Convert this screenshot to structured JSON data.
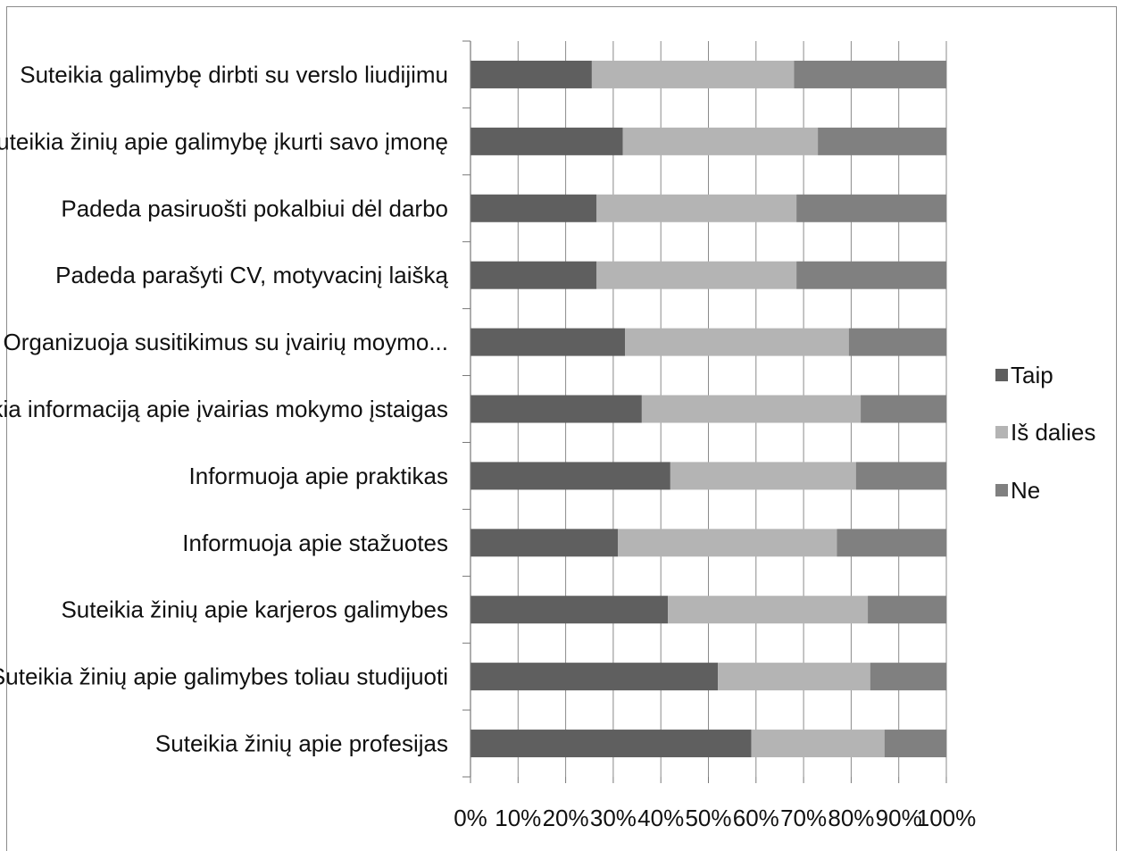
{
  "chart_data": {
    "type": "bar",
    "orientation": "horizontal",
    "stacked": "percent",
    "categories": [
      "Suteikia galimybę dirbti su verslo liudijimu",
      "Suteikia žinių apie galimybę įkurti savo įmonę",
      "Padeda pasiruošti pokalbiui dėl darbo",
      "Padeda parašyti CV, motyvacinį laišką",
      "Organizuoja susitikimus su įvairių moymo...",
      "Teikia informaciją apie įvairias mokymo įstaigas",
      "Informuoja apie praktikas",
      "Informuoja apie stažuotes",
      "Suteikia žinių apie karjeros galimybes",
      "Suteikia žinių apie galimybes toliau studijuoti",
      "Suteikia žinių apie profesijas"
    ],
    "series": [
      {
        "name": "Taip",
        "color": "#5f5f5f",
        "values": [
          25.5,
          32,
          26.5,
          26.5,
          32.5,
          36,
          42,
          31,
          41.5,
          52,
          59
        ]
      },
      {
        "name": "Iš dalies",
        "color": "#b4b4b4",
        "values": [
          42.5,
          41,
          42,
          42,
          47,
          46,
          39,
          46,
          42,
          32,
          28
        ]
      },
      {
        "name": "Ne",
        "color": "#808080",
        "values": [
          32,
          27,
          31.5,
          31.5,
          20.5,
          18,
          19,
          23,
          16.5,
          16,
          13
        ]
      }
    ],
    "xticks": [
      "0%",
      "10%",
      "20%",
      "30%",
      "40%",
      "50%",
      "60%",
      "70%",
      "80%",
      "90%",
      "100%"
    ],
    "xlim": [
      0,
      100
    ],
    "grid": "vertical",
    "legend": "right",
    "title": "",
    "xlabel": "",
    "ylabel": ""
  }
}
